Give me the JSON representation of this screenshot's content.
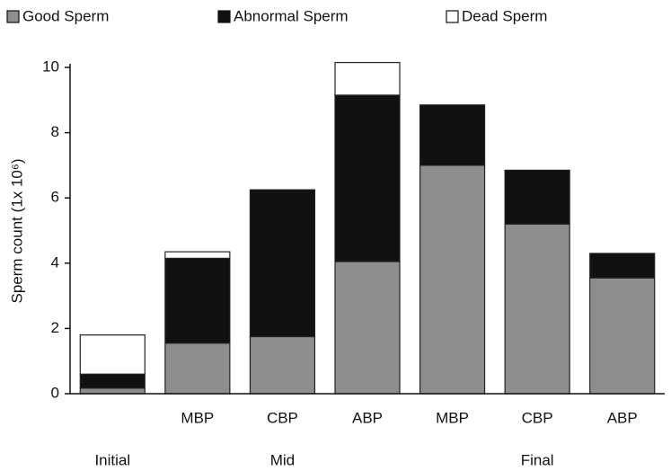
{
  "chart_data": {
    "type": "stacked_bar",
    "y_label": "Sperm count (1x 10⁶)",
    "categories": [
      null,
      "MBP",
      "CBP",
      "ABP",
      "MBP",
      "CBP",
      "ABP"
    ],
    "groups": [
      {
        "label": "Initial",
        "size": 1
      },
      {
        "label": "Mid",
        "size": 3
      },
      {
        "label": "Final",
        "size": 3
      }
    ],
    "series": [
      {
        "name": "Good Sperm",
        "color": "#8e8e8e",
        "values": [
          0.17,
          1.55,
          1.75,
          4.05,
          7.0,
          5.2,
          3.55
        ]
      },
      {
        "name": "Abnormal Sperm",
        "color": "#111111",
        "values": [
          0.43,
          2.6,
          4.5,
          5.1,
          1.85,
          1.65,
          0.75
        ]
      },
      {
        "name": "Dead Sperm",
        "color": "#ffffff",
        "values": [
          1.2,
          0.2,
          0,
          1.0,
          0,
          0,
          0
        ]
      }
    ],
    "ylim": [
      0,
      10
    ],
    "yticks": [
      0,
      2,
      4,
      6,
      8,
      10
    ],
    "grid": false
  }
}
